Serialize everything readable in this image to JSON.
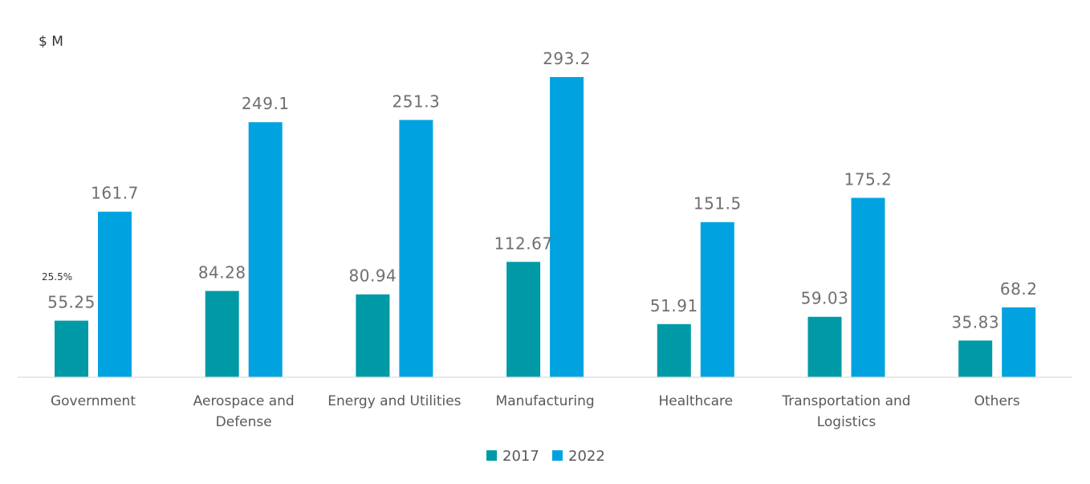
{
  "chart_data": {
    "type": "bar",
    "ylabel": "$ M",
    "categories": [
      [
        "Government"
      ],
      [
        "Aerospace and",
        "Defense"
      ],
      [
        "Energy and Utilities"
      ],
      [
        "Manufacturing"
      ],
      [
        "Healthcare"
      ],
      [
        "Transportation and",
        "Logistics"
      ],
      [
        "Others"
      ]
    ],
    "series": [
      {
        "name": "2017",
        "color": "#009aa6",
        "values": [
          55.25,
          84.28,
          80.94,
          112.67,
          51.91,
          59.03,
          35.83
        ],
        "labels": [
          "55.25",
          "84.28",
          "80.94",
          "112.67",
          "51.91",
          "59.03",
          "35.83"
        ]
      },
      {
        "name": "2022",
        "color": "#00a3e0",
        "values": [
          161.7,
          249.1,
          251.3,
          293.2,
          151.5,
          175.2,
          68.2
        ],
        "labels": [
          "161.7",
          "249.1",
          "251.3",
          "293.2",
          "151.5",
          "175.2",
          "68.2"
        ]
      }
    ],
    "annotation": "25.5%",
    "ylim": [
      0,
      300
    ],
    "grid": false,
    "legend": "bottom-center"
  }
}
